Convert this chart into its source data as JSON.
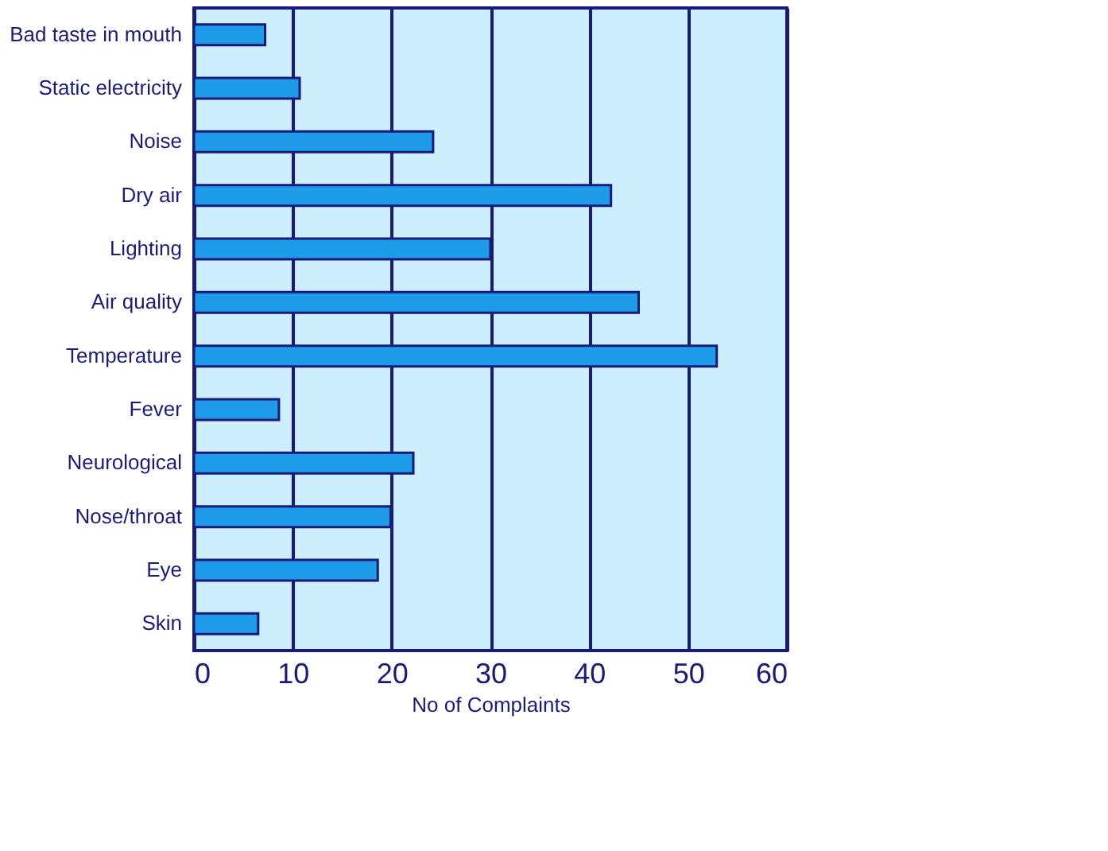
{
  "chart_data": {
    "type": "bar",
    "orientation": "horizontal",
    "xlabel": "No of Complaints",
    "categories": [
      "Bad taste in mouth",
      "Static electricity",
      "Noise",
      "Dry air",
      "Lighting",
      "Air quality",
      "Temperature",
      "Fever",
      "Neurological",
      "Nose/throat",
      "Eye",
      "Skin"
    ],
    "values": [
      7.2,
      10.7,
      24.2,
      42.2,
      30,
      45,
      52.9,
      8.6,
      22.2,
      19.9,
      18.6,
      6.5
    ],
    "color": "#1e9be8",
    "xlim": [
      0,
      60
    ],
    "xticks": [
      0,
      10,
      20,
      30,
      40,
      50,
      60
    ],
    "grid": "x"
  }
}
